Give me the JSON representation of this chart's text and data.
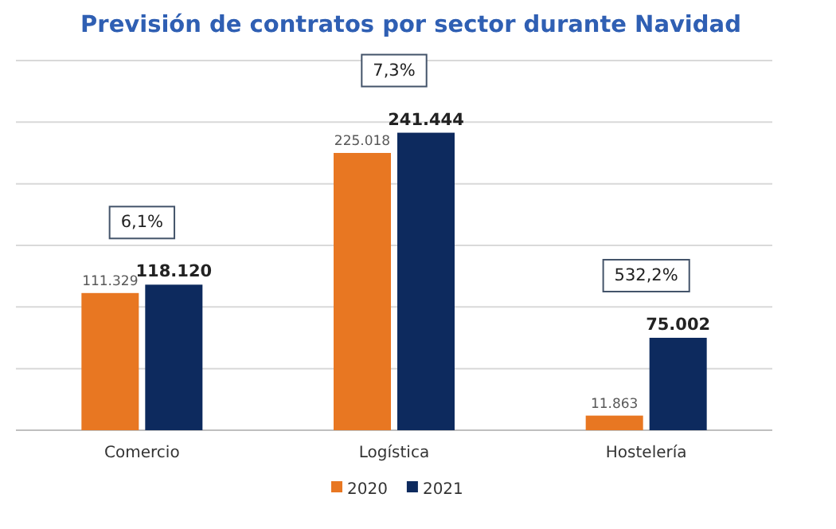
{
  "chart_data": {
    "type": "bar",
    "title": "Previsión de contratos por sector durante Navidad",
    "categories": [
      "Comercio",
      "Logística",
      "Hostelería"
    ],
    "series": [
      {
        "name": "2020",
        "color": "#e87722",
        "values": [
          111329,
          225018,
          11863
        ],
        "value_labels": [
          "111.329",
          "225.018",
          "11.863"
        ]
      },
      {
        "name": "2021",
        "color": "#0d2a5e",
        "values": [
          118120,
          241444,
          75002
        ],
        "value_labels": [
          "118.120",
          "241.444",
          "75.002"
        ]
      }
    ],
    "ylim": [
      0,
      300000
    ],
    "yticks": [
      {
        "value": 0,
        "label": null
      },
      {
        "value": 50000,
        "label": null
      },
      {
        "value": 100000,
        "label": null
      },
      {
        "value": 150000,
        "label": null
      },
      {
        "value": 200000,
        "label": null
      },
      {
        "value": 250000,
        "label": null
      },
      {
        "value": 300000,
        "label": null
      }
    ],
    "tick_labels": "x",
    "grid": "y",
    "legend": "bottom",
    "annotations": [
      "6,1%",
      "7,3%",
      "532,2%"
    ]
  }
}
